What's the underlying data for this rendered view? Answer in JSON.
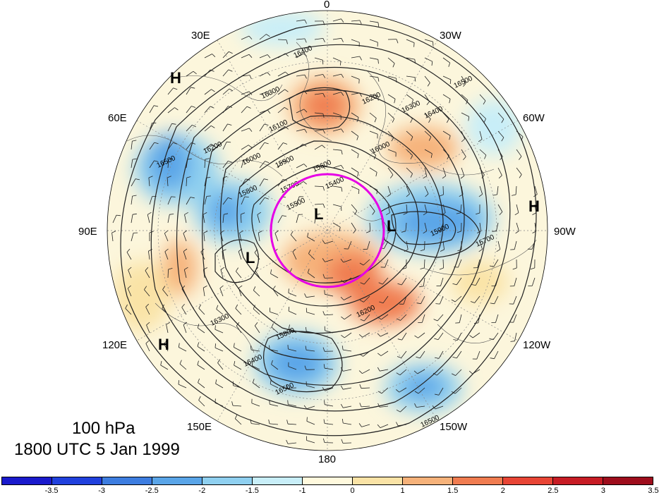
{
  "caption": {
    "level": "100 hPa",
    "time": "1800 UTC 5 Jan 1999"
  },
  "longitude_labels": {
    "lon_0": "0",
    "lon_30w": "30W",
    "lon_60w": "60W",
    "lon_90w": "90W",
    "lon_120w": "120W",
    "lon_150w": "150W",
    "lon_180": "180",
    "lon_150e": "150E",
    "lon_120e": "120E",
    "lon_90e": "90E",
    "lon_60e": "60E",
    "lon_30e": "30E"
  },
  "pressure_systems": {
    "high_1": "H",
    "high_2": "H",
    "high_3": "H",
    "low_1": "L",
    "low_2": "L",
    "low_3": "L"
  },
  "contour_labels": [
    "16400",
    "16300",
    "16200",
    "16100",
    "16000",
    "15900",
    "15800",
    "15700",
    "15600",
    "15500",
    "15400",
    "16500",
    "16300",
    "16400",
    "16500",
    "16200",
    "16000",
    "15900",
    "15700",
    "16500",
    "16400",
    "15800",
    "16300",
    "16200",
    "16500"
  ],
  "colorbar": {
    "colors": [
      "#1a1acc",
      "#2040dd",
      "#3d7de0",
      "#5aa5e8",
      "#8fd0f0",
      "#c8eef8",
      "#fff9dd",
      "#fae3a6",
      "#f6b27a",
      "#f07c50",
      "#e84535",
      "#c71c24",
      "#9e0d1c"
    ],
    "ticks": [
      "-3.5",
      "-3",
      "-2.5",
      "-2",
      "-1.5",
      "-1",
      "0",
      "1",
      "1.5",
      "2",
      "2.5",
      "3",
      "3.5"
    ]
  },
  "highlight_color": "#e600e6"
}
